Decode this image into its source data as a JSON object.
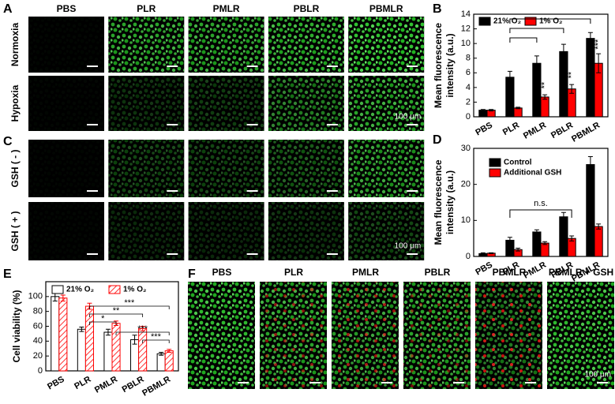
{
  "panel_labels": [
    "A",
    "B",
    "C",
    "D",
    "E",
    "F"
  ],
  "images_top": {
    "columns": [
      "PBS",
      "PLR",
      "PMLR",
      "PBLR",
      "PBMLR"
    ],
    "rows": [
      "Normoxia",
      "Hypoxia"
    ],
    "scale": "100 μm"
  },
  "images_gsh": {
    "rows": [
      "GSH ( - )",
      "GSH ( + )"
    ],
    "scale": "100 μm"
  },
  "images_f": {
    "columns": [
      "PBS",
      "PLR",
      "PMLR",
      "PBLR",
      "PBMLR",
      "PBMLR + GSH"
    ],
    "scale": "100 μm"
  },
  "chart_data": [
    {
      "type": "bar",
      "categories": [
        "PBS",
        "PLR",
        "PMLR",
        "PBLR",
        "PBMLR"
      ],
      "series": [
        {
          "name": "21% O₂",
          "color": "#000000",
          "values": [
            0.9,
            5.4,
            7.3,
            8.9,
            10.7
          ],
          "errors": [
            0.1,
            0.8,
            1.0,
            1.0,
            0.8
          ]
        },
        {
          "name": "1% O₂",
          "color": "#ff0000",
          "values": [
            0.9,
            1.2,
            2.7,
            3.8,
            7.3
          ],
          "errors": [
            0.1,
            0.1,
            0.3,
            0.6,
            1.3
          ]
        }
      ],
      "ylim": [
        0,
        14
      ],
      "yticks": [
        0,
        2,
        4,
        6,
        8,
        10,
        12,
        14
      ],
      "y_label": [
        "Mean fluorescence",
        "intensity (a.u.)"
      ],
      "annotations": [
        "**",
        "**",
        "***"
      ],
      "legend": "upper left"
    },
    {
      "type": "bar",
      "categories": [
        "PBS",
        "PLR",
        "PMLR",
        "PBLR",
        "PBMLR"
      ],
      "series": [
        {
          "name": "Control",
          "color": "#000000",
          "values": [
            0.8,
            4.5,
            6.8,
            11,
            25.5
          ],
          "errors": [
            0.2,
            0.8,
            0.6,
            1.2,
            2.2
          ]
        },
        {
          "name": "Additional GSH",
          "color": "#ff0000",
          "values": [
            0.9,
            1.9,
            3.7,
            5,
            8.3
          ],
          "errors": [
            0.1,
            0.4,
            0.4,
            0.7,
            0.7
          ]
        }
      ],
      "ylim": [
        0,
        30
      ],
      "yticks": [
        0,
        10,
        20,
        30
      ],
      "y_label": [
        "Mean fluorescence",
        "intensity (a.u.)"
      ],
      "annotations": [
        "n.s."
      ],
      "legend": "upper left"
    },
    {
      "type": "bar",
      "categories": [
        "PBS",
        "PLR",
        "PMLR",
        "PBLR",
        "PBMLR"
      ],
      "series": [
        {
          "name": "21% O₂",
          "color": "#000000",
          "style": "hollow",
          "values": [
            100,
            56,
            52,
            42,
            23
          ],
          "errors": [
            6,
            3,
            4,
            6,
            2
          ]
        },
        {
          "name": "1% O₂",
          "color": "#ff0000",
          "style": "hatched",
          "values": [
            98,
            87,
            64,
            57,
            27
          ],
          "errors": [
            4,
            4,
            3,
            3,
            2
          ]
        }
      ],
      "ylim": [
        0,
        120
      ],
      "yticks": [
        0,
        20,
        40,
        60,
        80,
        100
      ],
      "y_label": [
        "Cell viability (%)"
      ],
      "annotations": [
        "*",
        "**",
        "***",
        "***",
        "***"
      ],
      "legend": "upper"
    }
  ]
}
